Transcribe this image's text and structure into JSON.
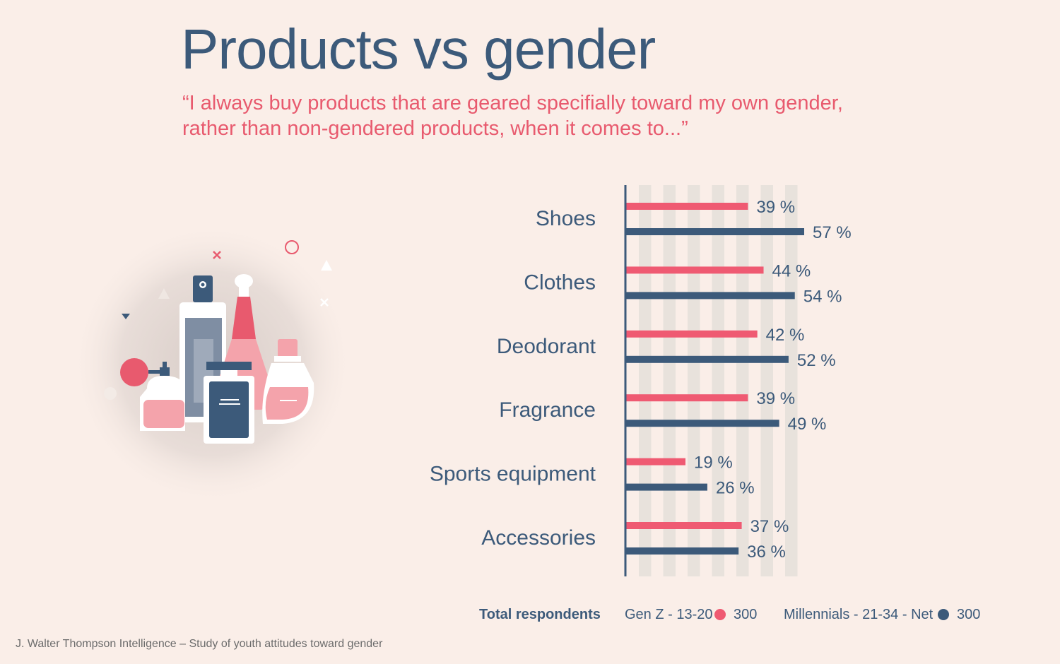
{
  "title": "Products vs gender",
  "subtitle": "“I always buy products that are geared specifially toward my own gender, rather than non-gendered products, when it comes to...”",
  "colors": {
    "genz": "#ef5a72",
    "millennials": "#3c5a7a",
    "background": "#faeee8",
    "stripe": "#e8e2dc"
  },
  "chart_data": {
    "type": "bar",
    "orientation": "horizontal",
    "categories": [
      "Shoes",
      "Clothes",
      "Deodorant",
      "Fragrance",
      "Sports equipment",
      "Accessories"
    ],
    "series": [
      {
        "name": "Gen Z - 13-20",
        "color": "#ef5a72",
        "values": [
          39,
          44,
          42,
          39,
          19,
          37
        ]
      },
      {
        "name": "Millennials - 21-34 - Net",
        "color": "#3c5a7a",
        "values": [
          57,
          54,
          52,
          49,
          26,
          36
        ]
      }
    ],
    "value_suffix": " %",
    "xlim": [
      0,
      57
    ]
  },
  "legend": {
    "total_label": "Total respondents",
    "genz_label": "Gen Z - 13-20",
    "genz_count": "300",
    "millennials_label": "Millennials - 21-34 - Net",
    "millennials_count": "300"
  },
  "footer": "J. Walter Thompson Intelligence – Study of youth attitudes toward gender",
  "illustration": {
    "icon": "perfume-bottles-icon"
  }
}
